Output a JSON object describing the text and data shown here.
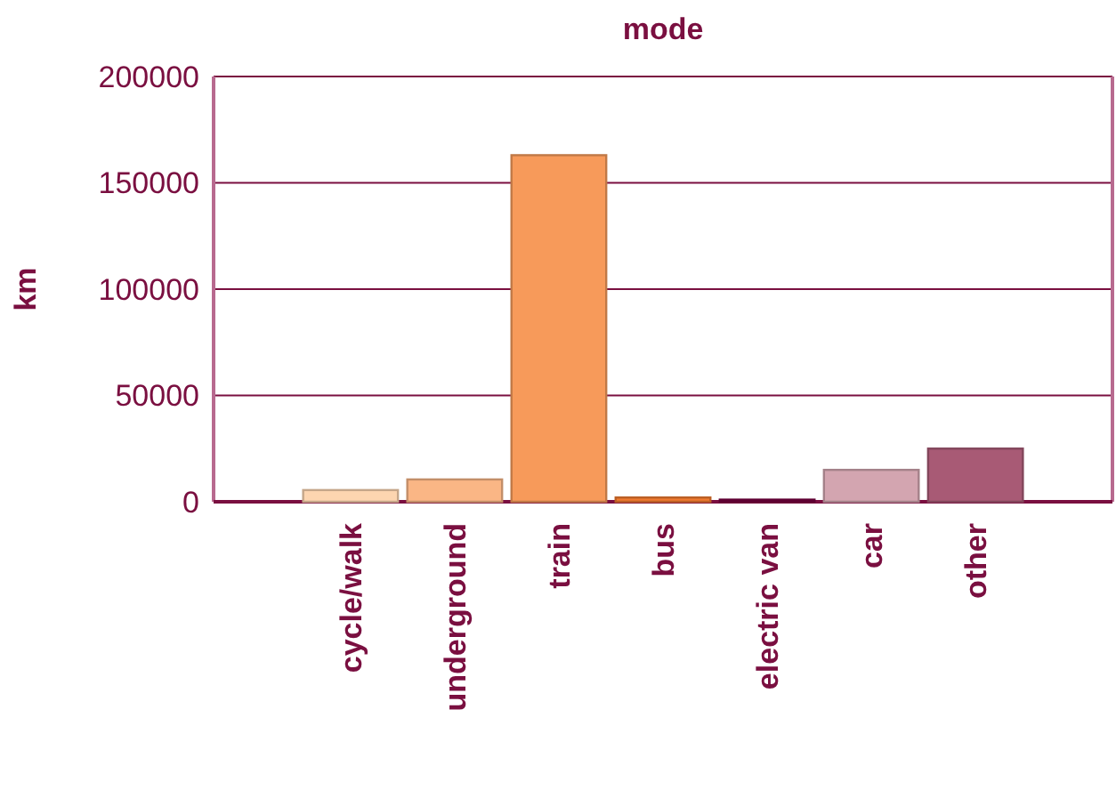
{
  "chart_data": {
    "type": "bar",
    "title": "mode",
    "ylabel": "km",
    "categories": [
      "cycle/walk",
      "underground",
      "train",
      "bus",
      "electric van",
      "car",
      "other"
    ],
    "values": [
      5500,
      10500,
      163000,
      2000,
      1000,
      15000,
      25000
    ],
    "colors": [
      "#fdd5b0",
      "#fab685",
      "#f79a5a",
      "#f07a30",
      "#7a0040",
      "#d3a5b0",
      "#a85a75"
    ],
    "ylim": [
      0,
      200000
    ],
    "yticks": [
      0,
      50000,
      100000,
      150000,
      200000
    ],
    "grid": "y"
  }
}
